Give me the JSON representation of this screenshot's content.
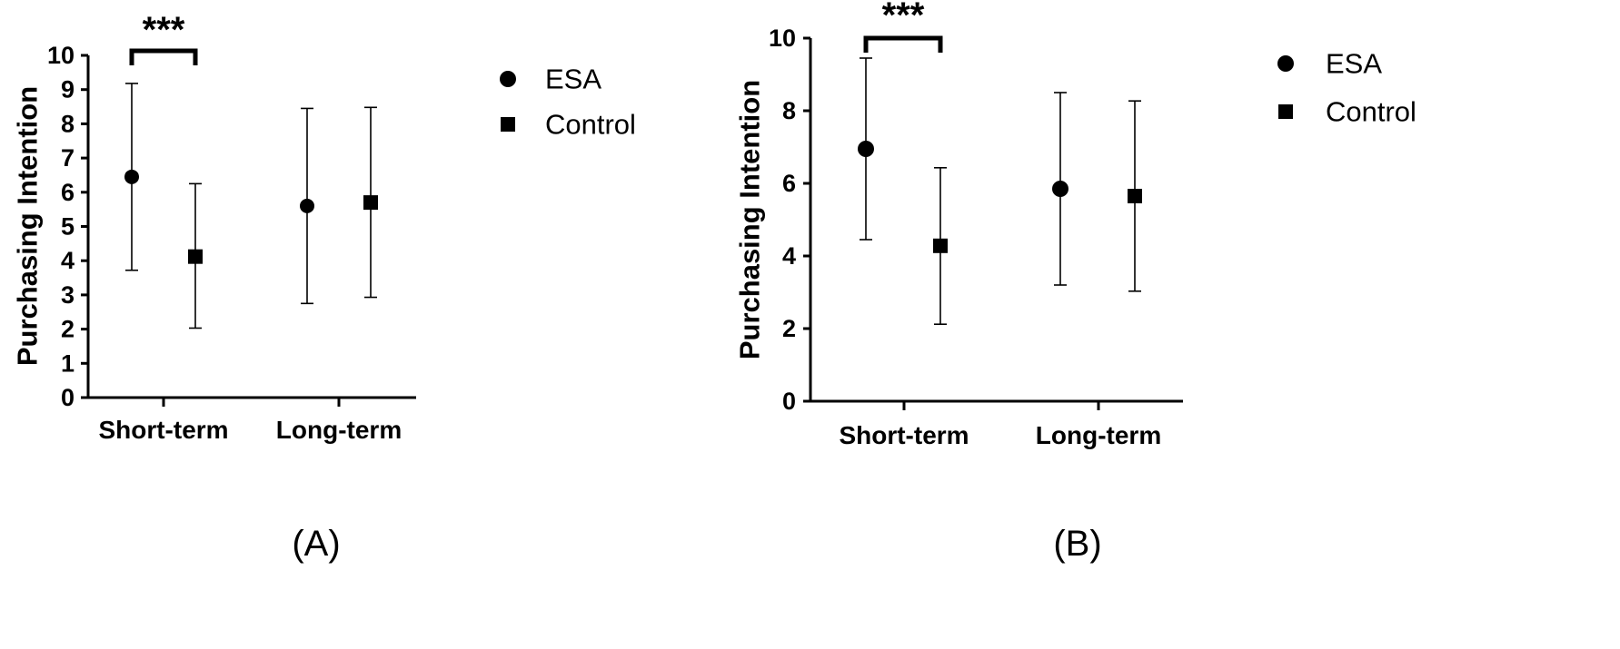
{
  "chart_data": [
    {
      "type": "scatter",
      "panel_label": "(A)",
      "ylabel": "Purchasing Intention",
      "xlabel": "",
      "categories": [
        "Short-term",
        "Long-term"
      ],
      "ylim": [
        0,
        10
      ],
      "yticks": [
        0,
        1,
        2,
        3,
        4,
        5,
        6,
        7,
        8,
        9,
        10
      ],
      "grid": false,
      "legend_position": "top-right",
      "series": [
        {
          "name": "ESA",
          "marker": "circle",
          "values": [
            6.45,
            5.6
          ],
          "err_low": [
            3.72,
            2.75
          ],
          "err_high": [
            9.18,
            8.45
          ]
        },
        {
          "name": "Control",
          "marker": "square",
          "values": [
            4.12,
            5.7
          ],
          "err_low": [
            2.03,
            2.93
          ],
          "err_high": [
            6.25,
            8.48
          ]
        }
      ],
      "annotations": [
        {
          "text": "***",
          "category": "Short-term"
        }
      ]
    },
    {
      "type": "scatter",
      "panel_label": "(B)",
      "ylabel": "Purchasing Intention",
      "xlabel": "",
      "categories": [
        "Short-term",
        "Long-term"
      ],
      "ylim": [
        0,
        10
      ],
      "yticks": [
        0,
        2,
        4,
        6,
        8,
        10
      ],
      "grid": false,
      "legend_position": "top-right",
      "series": [
        {
          "name": "ESA",
          "marker": "circle",
          "values": [
            6.95,
            5.85
          ],
          "err_low": [
            4.45,
            3.2
          ],
          "err_high": [
            9.45,
            8.5
          ]
        },
        {
          "name": "Control",
          "marker": "square",
          "values": [
            4.28,
            5.65
          ],
          "err_low": [
            2.12,
            3.03
          ],
          "err_high": [
            6.43,
            8.27
          ]
        }
      ],
      "annotations": [
        {
          "text": "***",
          "category": "Short-term"
        }
      ]
    }
  ],
  "colors": {
    "ink": "#000000",
    "background": "#ffffff"
  }
}
